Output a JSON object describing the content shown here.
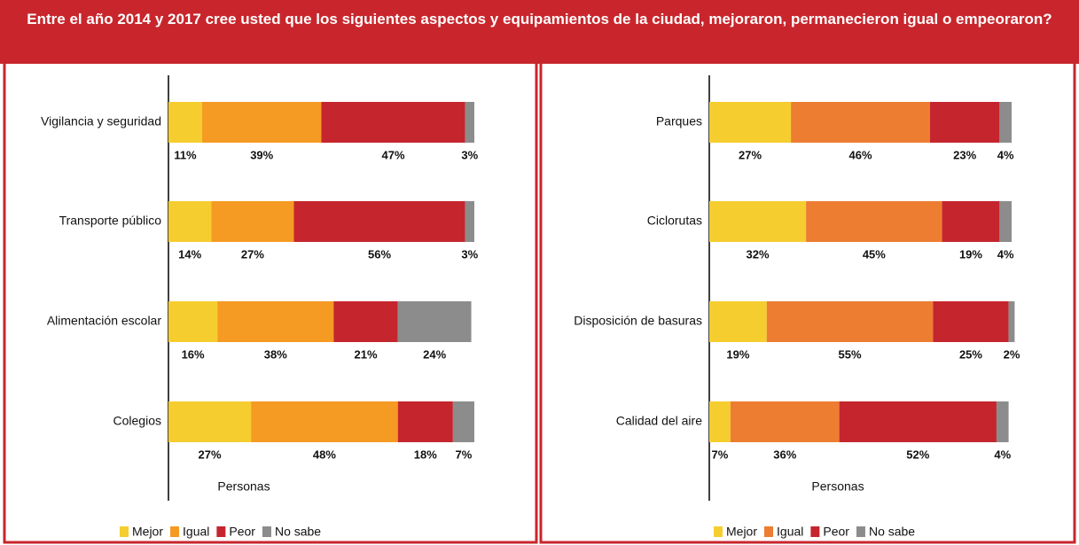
{
  "title": "Entre el año 2014 y 2017 cree usted que los siguientes aspectos y equipamientos de la ciudad, mejoraron, permanecieron igual o empeoraron?",
  "chart_data": [
    {
      "type": "bar",
      "orientation": "horizontal",
      "stacked": true,
      "x_label": "Personas",
      "xlim": [
        0,
        100
      ],
      "categories": [
        "Vigilancia y seguridad",
        "Transporte público",
        "Alimentación escolar",
        "Colegios"
      ],
      "series": [
        {
          "name": "Mejor",
          "color": "#f5cd2f",
          "values": [
            11,
            14,
            16,
            27
          ],
          "value_labels": [
            "11%",
            "14%",
            "16%",
            "27%"
          ]
        },
        {
          "name": "Igual",
          "color": "#f59a23",
          "values": [
            39,
            27,
            38,
            48
          ],
          "value_labels": [
            "39%",
            "27%",
            "38%",
            "48%"
          ]
        },
        {
          "name": "Peor",
          "color": "#c5252d",
          "values": [
            47,
            56,
            21,
            18
          ],
          "value_labels": [
            "47%",
            "56%",
            "21%",
            "18%"
          ]
        },
        {
          "name": "No sabe",
          "color": "#8c8c8c",
          "values": [
            3,
            3,
            24,
            7
          ],
          "value_labels": [
            "3%",
            "3%",
            "24%",
            "7%"
          ]
        }
      ]
    },
    {
      "type": "bar",
      "orientation": "horizontal",
      "stacked": true,
      "x_label": "Personas",
      "xlim": [
        0,
        100
      ],
      "categories": [
        "Parques",
        "Ciclorutas",
        "Disposición de basuras",
        "Calidad del aire"
      ],
      "series": [
        {
          "name": "Mejor",
          "color": "#f5cd2f",
          "values": [
            27,
            32,
            19,
            7
          ],
          "value_labels": [
            "27%",
            "32%",
            "19%",
            "7%"
          ]
        },
        {
          "name": "Igual",
          "color": "#ed7d31",
          "values": [
            46,
            45,
            55,
            36
          ],
          "value_labels": [
            "46%",
            "45%",
            "55%",
            "36%"
          ]
        },
        {
          "name": "Peor",
          "color": "#c5252d",
          "values": [
            23,
            19,
            25,
            52
          ],
          "value_labels": [
            "23%",
            "19%",
            "25%",
            "52%"
          ]
        },
        {
          "name": "No sabe",
          "color": "#8c8c8c",
          "values": [
            4,
            4,
            2,
            4
          ],
          "value_labels": [
            "4%",
            "4%",
            "2%",
            "4%"
          ]
        }
      ]
    }
  ]
}
